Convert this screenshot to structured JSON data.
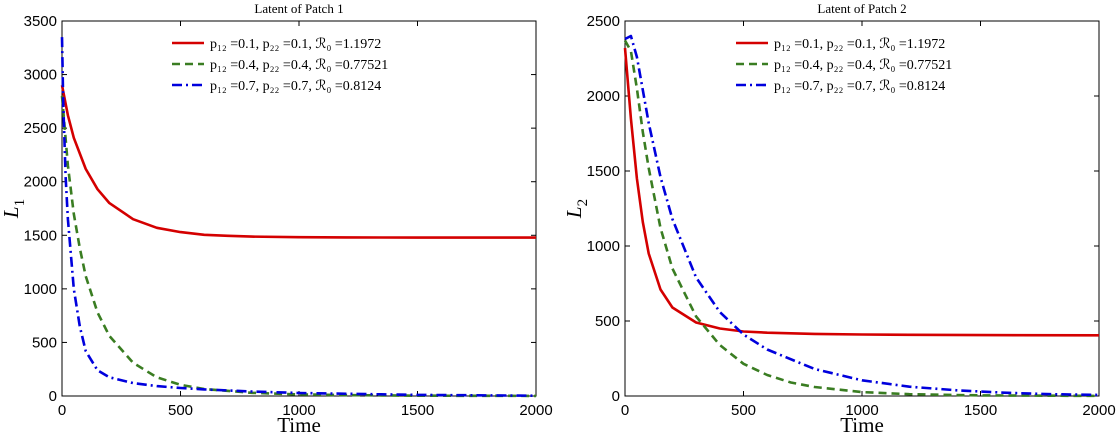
{
  "chart_data": [
    {
      "type": "line",
      "title": "Latent of Patch 1",
      "xlabel": "Time",
      "ylabel": "L",
      "ylabel_sub": "1",
      "xlim": [
        0,
        2000
      ],
      "ylim": [
        0,
        3500
      ],
      "xticks": [
        "0",
        "500",
        "1000",
        "1500",
        "2000"
      ],
      "yticks": [
        "0",
        "500",
        "1000",
        "1500",
        "2000",
        "2500",
        "3000",
        "3500"
      ],
      "legend_position": "top-right",
      "grid": false,
      "series": [
        {
          "name": "p₁₂ =0.1, p₂₂ =0.1, ℛ₀ =1.1972",
          "color": "#d40000",
          "style": "solid",
          "x": [
            0,
            25,
            50,
            100,
            150,
            200,
            300,
            400,
            500,
            600,
            700,
            800,
            1000,
            1200,
            1500,
            2000
          ],
          "y": [
            2900,
            2620,
            2410,
            2120,
            1930,
            1800,
            1650,
            1570,
            1530,
            1505,
            1495,
            1488,
            1482,
            1480,
            1478,
            1478
          ]
        },
        {
          "name": "p₁₂ =0.4, p₂₂ =0.4, ℛ₀ =0.77521",
          "color": "#3a7d22",
          "style": "dashed",
          "x": [
            0,
            25,
            50,
            75,
            100,
            150,
            200,
            300,
            400,
            500,
            600,
            800,
            1000,
            1200,
            1500,
            2000
          ],
          "y": [
            2800,
            2150,
            1700,
            1380,
            1120,
            780,
            560,
            310,
            175,
            105,
            65,
            30,
            15,
            8,
            3,
            1
          ]
        },
        {
          "name": "p₁₂ =0.7, p₂₂ =0.7, ℛ₀ =0.8124",
          "color": "#0000dd",
          "style": "dashdot",
          "x": [
            0,
            5,
            15,
            25,
            50,
            75,
            100,
            150,
            200,
            300,
            400,
            500,
            600,
            800,
            1000,
            1500,
            2000
          ],
          "y": [
            3350,
            2750,
            2050,
            1650,
            1000,
            650,
            420,
            240,
            175,
            120,
            92,
            75,
            62,
            42,
            28,
            10,
            3
          ]
        }
      ]
    },
    {
      "type": "line",
      "title": "Latent of Patch 2",
      "xlabel": "Time",
      "ylabel": "L",
      "ylabel_sub": "2",
      "xlim": [
        0,
        2000
      ],
      "ylim": [
        0,
        2500
      ],
      "xticks": [
        "0",
        "500",
        "1000",
        "1500",
        "2000"
      ],
      "yticks": [
        "0",
        "500",
        "1000",
        "1500",
        "2000",
        "2500"
      ],
      "legend_position": "top-right",
      "grid": false,
      "series": [
        {
          "name": "p₁₂ =0.1, p₂₂ =0.1, ℛ₀ =1.1972",
          "color": "#d40000",
          "style": "solid",
          "x": [
            0,
            25,
            50,
            75,
            100,
            150,
            200,
            300,
            400,
            500,
            600,
            800,
            1000,
            1200,
            1500,
            2000
          ],
          "y": [
            2320,
            1850,
            1450,
            1160,
            950,
            710,
            590,
            490,
            450,
            430,
            422,
            414,
            410,
            408,
            406,
            405
          ]
        },
        {
          "name": "p₁₂ =0.4, p₂₂ =0.4, ℛ₀ =0.77521",
          "color": "#3a7d22",
          "style": "dashed",
          "x": [
            0,
            25,
            50,
            75,
            100,
            150,
            200,
            300,
            400,
            500,
            600,
            700,
            800,
            1000,
            1200,
            1500,
            2000
          ],
          "y": [
            2370,
            2300,
            2050,
            1760,
            1520,
            1120,
            850,
            530,
            340,
            215,
            140,
            90,
            60,
            26,
            12,
            4,
            1
          ]
        },
        {
          "name": "p₁₂ =0.7, p₂₂ =0.7, ℛ₀ =0.8124",
          "color": "#0000dd",
          "style": "dashdot",
          "x": [
            0,
            25,
            50,
            75,
            100,
            150,
            200,
            300,
            400,
            500,
            600,
            800,
            1000,
            1200,
            1400,
            1600,
            1800,
            2000
          ],
          "y": [
            2380,
            2400,
            2260,
            2040,
            1820,
            1460,
            1180,
            790,
            560,
            410,
            310,
            180,
            105,
            62,
            38,
            22,
            12,
            7
          ]
        }
      ]
    }
  ]
}
